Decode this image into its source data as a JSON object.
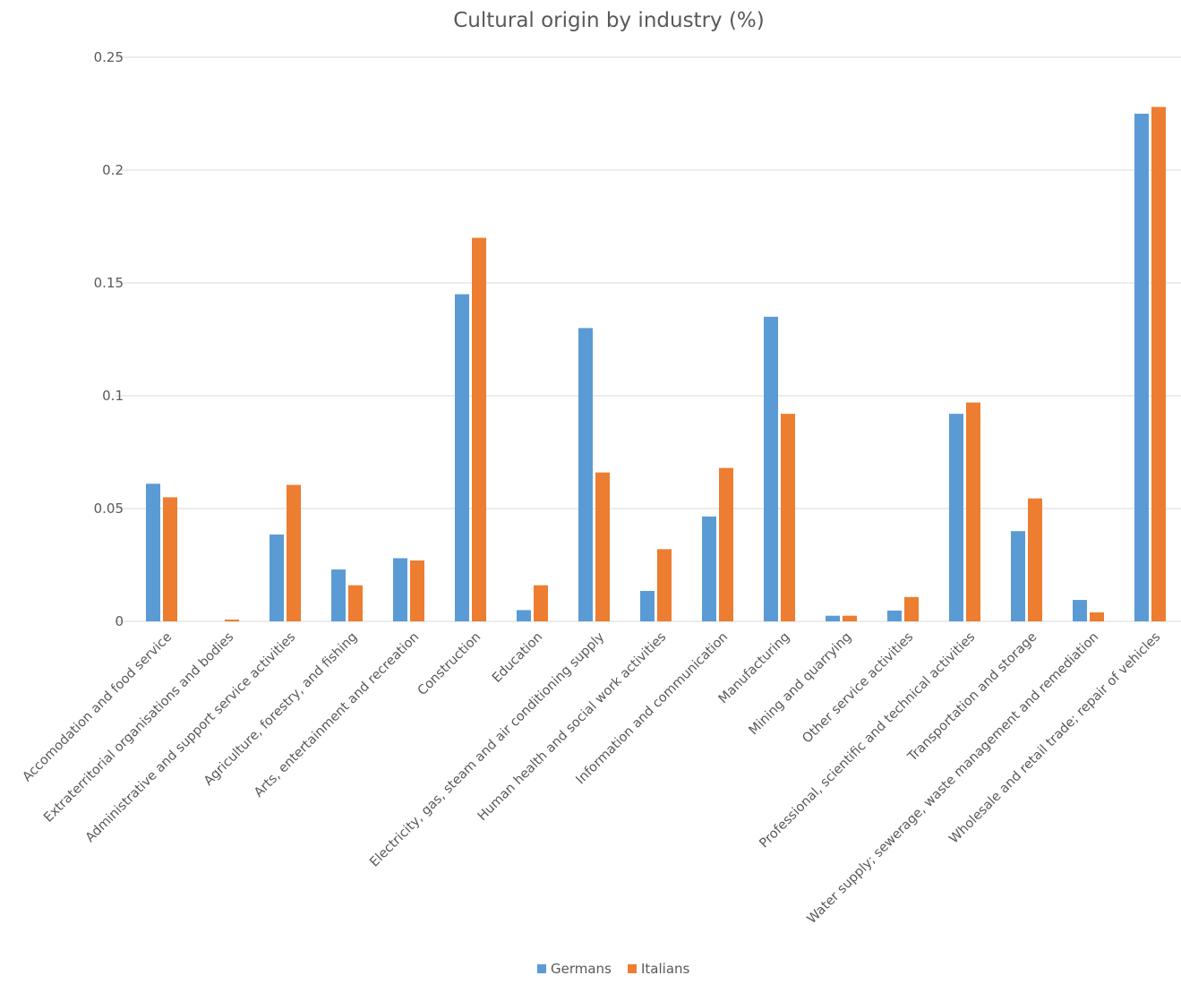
{
  "chart_data": {
    "type": "bar",
    "title": "Cultural origin by industry (%)",
    "xlabel": "",
    "ylabel": "",
    "ylim": [
      0,
      0.25
    ],
    "yticks": [
      "0",
      "0.05",
      "0.1",
      "0.15",
      "0.2",
      "0.25"
    ],
    "grid": true,
    "legend_position": "bottom",
    "categories": [
      "Accomodation and food service",
      "Extraterritorial organisations and bodies",
      "Administrative and support service activities",
      "Agriculture, forestry, and fishing",
      "Arts, entertainment and recreation",
      "Construction",
      "Education",
      "Electricity, gas, steam and air conditioning supply",
      "Human health and social work activities",
      "Information and communication",
      "Manufacturing",
      "Mining and quarrying",
      "Other service activities",
      "Professional, scientific and technical activities",
      "Transportation and storage",
      "Water supply; sewerage, waste management and remediation",
      "Wholesale and retail trade; repair of vehicles"
    ],
    "series": [
      {
        "name": "Germans",
        "color": "#5b9bd5",
        "values": [
          0.061,
          0.0,
          0.0385,
          0.023,
          0.028,
          0.145,
          0.005,
          0.13,
          0.0135,
          0.0465,
          0.135,
          0.0025,
          0.0048,
          0.092,
          0.04,
          0.0095,
          0.225
        ]
      },
      {
        "name": "Italians",
        "color": "#ed7d31",
        "values": [
          0.055,
          0.0008,
          0.0605,
          0.016,
          0.027,
          0.17,
          0.016,
          0.066,
          0.032,
          0.068,
          0.092,
          0.0025,
          0.0108,
          0.097,
          0.0545,
          0.004,
          0.228
        ]
      }
    ]
  }
}
